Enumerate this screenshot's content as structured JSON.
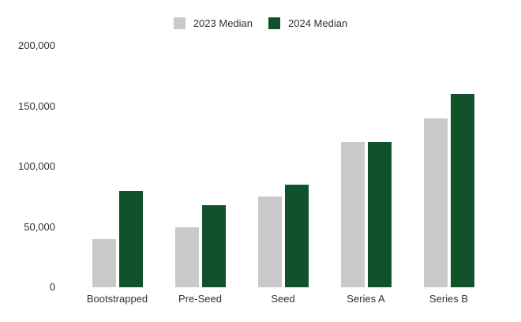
{
  "chart_data": {
    "type": "bar",
    "title": "",
    "xlabel": "",
    "ylabel": "",
    "categories": [
      "Bootstrapped",
      "Pre-Seed",
      "Seed",
      "Series A",
      "Series B"
    ],
    "series": [
      {
        "name": "2023 Median",
        "color": "#c9c9c9",
        "values": [
          40000,
          50000,
          75000,
          120000,
          140000
        ]
      },
      {
        "name": "2024 Median",
        "color": "#12522b",
        "values": [
          80000,
          68000,
          85000,
          120000,
          160000
        ]
      }
    ],
    "ylim": [
      0,
      200000
    ],
    "yticks": [
      0,
      50000,
      100000,
      150000,
      200000
    ],
    "ytick_labels": [
      "0",
      "50,000",
      "100,000",
      "150,000",
      "200,000"
    ],
    "grid": false,
    "axis_lines": false,
    "legend_position": "top-center"
  },
  "colors": {
    "background": "#ffffff",
    "text": "#303030",
    "bar_2023": "#c9c9c9",
    "bar_2024": "#12522b"
  }
}
